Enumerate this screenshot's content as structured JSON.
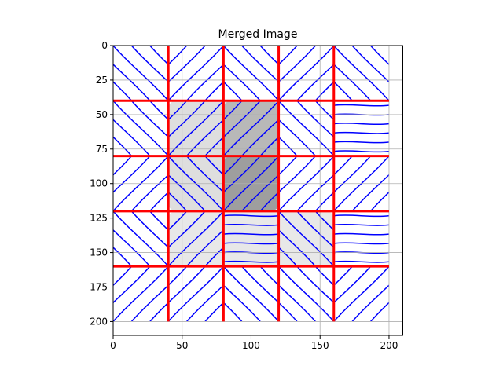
{
  "chart_data": {
    "type": "heatmap",
    "title": "Merged Image",
    "xlabel": "",
    "ylabel": "",
    "xlim": [
      0,
      210
    ],
    "ylim": [
      210,
      0
    ],
    "x_ticks": [
      0,
      50,
      100,
      150,
      200
    ],
    "y_ticks": [
      0,
      25,
      50,
      75,
      100,
      125,
      150,
      175,
      200
    ],
    "grid": true,
    "tile_boundaries": [
      40,
      80,
      120,
      160
    ],
    "shaded_regions": [
      {
        "x": [
          40,
          160
        ],
        "y": [
          120,
          160
        ],
        "gray": 0.91
      },
      {
        "x": [
          40,
          120
        ],
        "y": [
          40,
          120
        ],
        "gray": 0.87
      },
      {
        "x": [
          80,
          120
        ],
        "y": [
          40,
          120
        ],
        "gray": 0.72
      },
      {
        "x": [
          80,
          120
        ],
        "y": [
          80,
          120
        ],
        "gray": 0.62
      }
    ],
    "colors": {
      "lines": "#0000ff",
      "boundaries": "#ff0000",
      "grid": "#b0b0b0",
      "axes": "#000000"
    }
  }
}
